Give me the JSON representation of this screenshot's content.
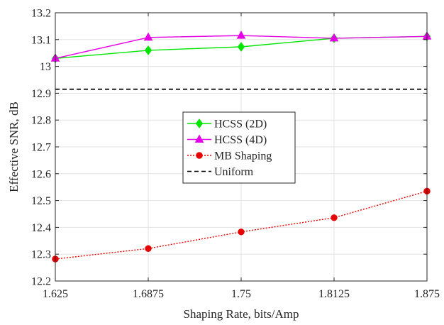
{
  "chart_data": {
    "type": "line",
    "title": "",
    "xlabel": "Shaping Rate, bits/Amp",
    "ylabel": "Effective SNR, dB",
    "x": [
      1.625,
      1.6875,
      1.75,
      1.8125,
      1.875
    ],
    "xticks": [
      "1.625",
      "1.6875",
      "1.75",
      "1.8125",
      "1.875"
    ],
    "xlim": [
      1.625,
      1.875
    ],
    "ylim": [
      12.2,
      13.2
    ],
    "yticks": [
      "12.2",
      "12.3",
      "12.4",
      "12.5",
      "12.6",
      "12.7",
      "12.8",
      "12.9",
      "13",
      "13.1",
      "13.2"
    ],
    "grid": true,
    "legend_position": "center",
    "series": [
      {
        "name": "HCSS (2D)",
        "values": [
          13.03,
          13.06,
          13.073,
          13.105,
          13.112
        ],
        "color": "#00e600",
        "marker": "diamond",
        "dash": "solid"
      },
      {
        "name": "HCSS (4D)",
        "values": [
          13.03,
          13.108,
          13.115,
          13.105,
          13.112
        ],
        "color": "#e600e6",
        "marker": "triangle",
        "dash": "solid"
      },
      {
        "name": "MB Shaping",
        "values": [
          12.282,
          12.321,
          12.383,
          12.436,
          12.535
        ],
        "color": "#e60000",
        "marker": "circle",
        "dash": "dotted"
      },
      {
        "name": "Uniform",
        "values": [
          12.915,
          12.915,
          12.915,
          12.915,
          12.915
        ],
        "color": "#000000",
        "marker": "none",
        "dash": "dashed"
      }
    ]
  }
}
